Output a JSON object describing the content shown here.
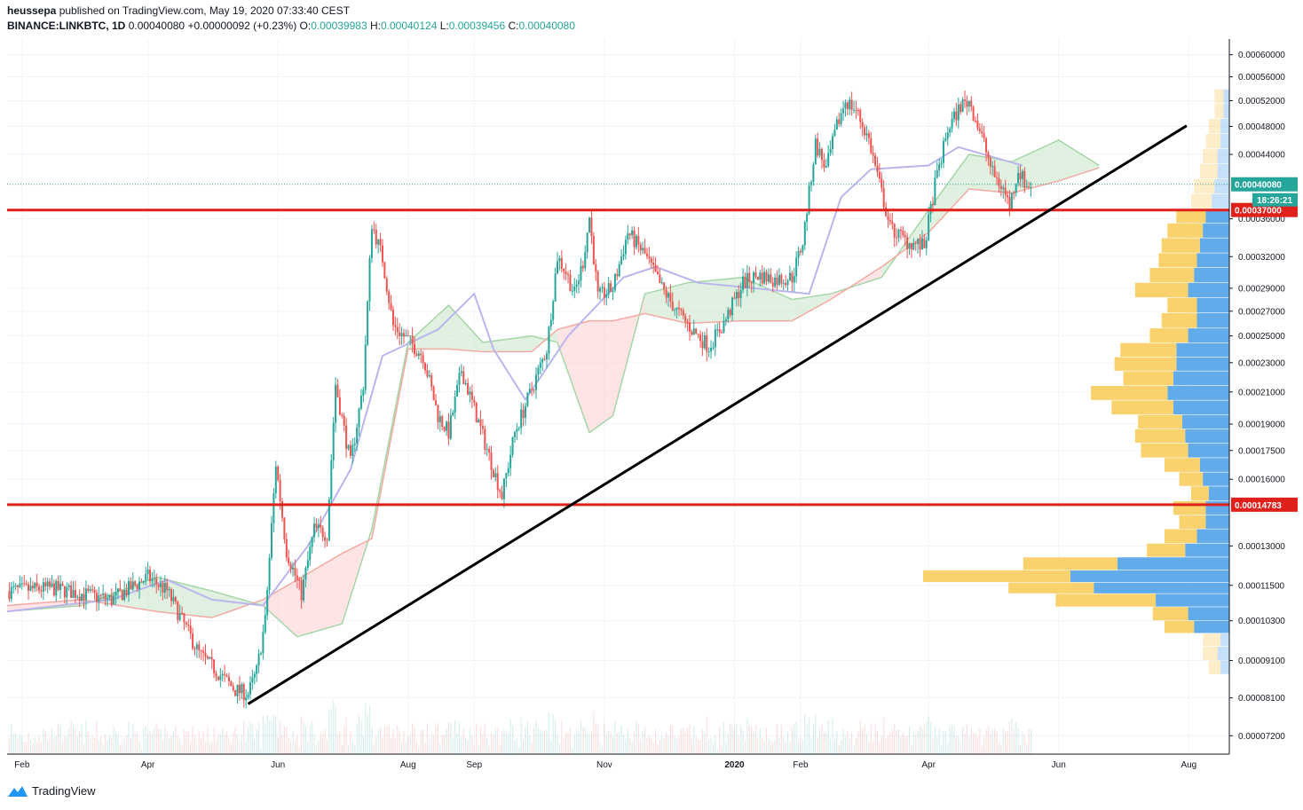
{
  "header": {
    "author": "heussepa",
    "published_text": "published on TradingView.com, May 19, 2020 07:33:40 CEST",
    "symbol": "BINANCE:LINKBTC, 1D",
    "last": "0.00040080",
    "change": "+0.00000092 (+0.23%)",
    "o_label": "O:",
    "o_value": "0.00039983",
    "h_label": "H:",
    "h_value": "0.00040124",
    "l_label": "L:",
    "l_value": "0.00039456",
    "c_label": "C:",
    "c_value": "0.00040080"
  },
  "footer": {
    "brand": "TradingView"
  },
  "colors": {
    "up": "#26a69a",
    "down": "#ef5350",
    "level_line": "#e0201b",
    "trendline": "#000000",
    "cloud_bull": "#c8e6c9",
    "cloud_bear": "#ffcdd2",
    "vp_buy": "#5aa7ea",
    "vp_sell": "#f9cf65",
    "tenkan": "#b9b6ee",
    "kijun": "#f4a9a2"
  },
  "chart_data": {
    "type": "candlestick",
    "symbol": "BINANCE:LINKBTC",
    "interval": "1D",
    "y_scale": "log",
    "ylim": [
      6.8e-05,
      0.00063
    ],
    "x_range": [
      "2019-01-25",
      "2020-08-20"
    ],
    "y_ticks": [
      "0.00060000",
      "0.00056000",
      "0.00052000",
      "0.00048000",
      "0.00044000",
      "0.00036000",
      "0.00032000",
      "0.00029000",
      "0.00027000",
      "0.00025000",
      "0.00023000",
      "0.00021000",
      "0.00019000",
      "0.00017500",
      "0.00016000",
      "0.00013000",
      "0.00011500",
      "0.00010300",
      "0.00009100",
      "0.00008100",
      "0.00007200"
    ],
    "x_ticks": [
      {
        "label": "Feb",
        "date": "2019-02-01"
      },
      {
        "label": "Apr",
        "date": "2019-04-01"
      },
      {
        "label": "Jun",
        "date": "2019-06-01"
      },
      {
        "label": "Aug",
        "date": "2019-08-01"
      },
      {
        "label": "Sep",
        "date": "2019-09-01"
      },
      {
        "label": "Nov",
        "date": "2019-11-01"
      },
      {
        "label": "2020",
        "date": "2020-01-01"
      },
      {
        "label": "Feb",
        "date": "2020-02-01"
      },
      {
        "label": "Apr",
        "date": "2020-04-01"
      },
      {
        "label": "Jun",
        "date": "2020-06-01"
      },
      {
        "label": "Aug",
        "date": "2020-08-01"
      }
    ],
    "price_path": [
      [
        "2019-01-25",
        0.000113
      ],
      [
        "2019-02-15",
        0.000114
      ],
      [
        "2019-03-01",
        0.000112
      ],
      [
        "2019-03-15",
        0.00011
      ],
      [
        "2019-04-01",
        0.000118
      ],
      [
        "2019-04-10",
        0.000113
      ],
      [
        "2019-04-25",
        9.3e-05
      ],
      [
        "2019-05-12",
        8.3e-05
      ],
      [
        "2019-05-18",
        8.2e-05
      ],
      [
        "2019-05-22",
        8.8e-05
      ],
      [
        "2019-05-26",
        0.000103
      ],
      [
        "2019-05-31",
        0.000168
      ],
      [
        "2019-06-05",
        0.000128
      ],
      [
        "2019-06-12",
        0.000112
      ],
      [
        "2019-06-18",
        0.000137
      ],
      [
        "2019-06-24",
        0.000135
      ],
      [
        "2019-06-28",
        0.000215
      ],
      [
        "2019-07-05",
        0.000168
      ],
      [
        "2019-07-11",
        0.000215
      ],
      [
        "2019-07-15",
        0.000355
      ],
      [
        "2019-07-20",
        0.000318
      ],
      [
        "2019-07-25",
        0.000258
      ],
      [
        "2019-08-02",
        0.000245
      ],
      [
        "2019-08-08",
        0.000235
      ],
      [
        "2019-08-15",
        0.000195
      ],
      [
        "2019-08-20",
        0.000185
      ],
      [
        "2019-08-26",
        0.000225
      ],
      [
        "2019-09-02",
        0.000195
      ],
      [
        "2019-09-08",
        0.000172
      ],
      [
        "2019-09-14",
        0.000152
      ],
      [
        "2019-09-20",
        0.000185
      ],
      [
        "2019-09-28",
        0.000212
      ],
      [
        "2019-10-05",
        0.00024
      ],
      [
        "2019-10-10",
        0.00032
      ],
      [
        "2019-10-14",
        0.000305
      ],
      [
        "2019-10-18",
        0.000285
      ],
      [
        "2019-10-22",
        0.000315
      ],
      [
        "2019-10-25",
        0.000362
      ],
      [
        "2019-10-29",
        0.000282
      ],
      [
        "2019-11-05",
        0.00029
      ],
      [
        "2019-11-12",
        0.000345
      ],
      [
        "2019-11-20",
        0.000322
      ],
      [
        "2019-11-28",
        0.00029
      ],
      [
        "2019-12-05",
        0.00027
      ],
      [
        "2019-12-12",
        0.000255
      ],
      [
        "2019-12-20",
        0.000242
      ],
      [
        "2019-12-27",
        0.00026
      ],
      [
        "2020-01-05",
        0.000295
      ],
      [
        "2020-01-12",
        0.000302
      ],
      [
        "2020-01-20",
        0.000298
      ],
      [
        "2020-01-28",
        0.0003
      ],
      [
        "2020-02-02",
        0.000335
      ],
      [
        "2020-02-08",
        0.000455
      ],
      [
        "2020-02-13",
        0.00042
      ],
      [
        "2020-02-18",
        0.00048
      ],
      [
        "2020-02-22",
        0.00052
      ],
      [
        "2020-02-27",
        0.000505
      ],
      [
        "2020-03-04",
        0.00046
      ],
      [
        "2020-03-10",
        0.00039
      ],
      [
        "2020-03-14",
        0.00035
      ],
      [
        "2020-03-22",
        0.000335
      ],
      [
        "2020-03-30",
        0.00033
      ],
      [
        "2020-04-04",
        0.0004
      ],
      [
        "2020-04-10",
        0.000475
      ],
      [
        "2020-04-16",
        0.000512
      ],
      [
        "2020-04-20",
        0.00052
      ],
      [
        "2020-04-26",
        0.000465
      ],
      [
        "2020-05-01",
        0.000415
      ],
      [
        "2020-05-06",
        0.000395
      ],
      [
        "2020-05-09",
        0.000375
      ],
      [
        "2020-05-13",
        0.00042
      ],
      [
        "2020-05-17",
        0.000398
      ],
      [
        "2020-05-19",
        0.000401
      ]
    ],
    "cloud": [
      [
        "2019-01-25",
        0.000106,
        0.000108
      ],
      [
        "2019-03-01",
        0.000108,
        0.00011
      ],
      [
        "2019-04-05",
        0.000118,
        0.000106
      ],
      [
        "2019-05-01",
        0.000113,
        0.000104
      ],
      [
        "2019-05-25",
        0.000108,
        0.00011
      ],
      [
        "2019-06-10",
        9.8e-05,
        0.000117
      ],
      [
        "2019-07-01",
        0.000102,
        0.000127
      ],
      [
        "2019-07-15",
        0.000137,
        0.000133
      ],
      [
        "2019-08-01",
        0.000245,
        0.00024
      ],
      [
        "2019-08-20",
        0.000275,
        0.00024
      ],
      [
        "2019-09-05",
        0.000245,
        0.000238
      ],
      [
        "2019-09-28",
        0.00025,
        0.000238
      ],
      [
        "2019-10-10",
        0.000245,
        0.000255
      ],
      [
        "2019-10-25",
        0.000185,
        0.000262
      ],
      [
        "2019-11-05",
        0.000195,
        0.000262
      ],
      [
        "2019-11-20",
        0.000285,
        0.000268
      ],
      [
        "2019-12-10",
        0.000295,
        0.00026
      ],
      [
        "2020-01-05",
        0.0003,
        0.000262
      ],
      [
        "2020-01-28",
        0.00028,
        0.000262
      ],
      [
        "2020-02-15",
        0.000285,
        0.00028
      ],
      [
        "2020-03-10",
        0.0003,
        0.00031
      ],
      [
        "2020-04-01",
        0.00037,
        0.000345
      ],
      [
        "2020-04-20",
        0.00044,
        0.000395
      ],
      [
        "2020-05-10",
        0.00043,
        0.00039
      ],
      [
        "2020-06-01",
        0.00046,
        0.000405
      ],
      [
        "2020-06-20",
        0.000425,
        0.000422
      ]
    ],
    "tenkan_kijun": [
      [
        "2019-01-25",
        0.000106
      ],
      [
        "2019-03-15",
        0.00011
      ],
      [
        "2019-04-10",
        0.000117
      ],
      [
        "2019-05-01",
        0.00011
      ],
      [
        "2019-05-25",
        0.000108
      ],
      [
        "2019-06-15",
        0.00013
      ],
      [
        "2019-07-05",
        0.000165
      ],
      [
        "2019-07-20",
        0.000235
      ],
      [
        "2019-08-15",
        0.000255
      ],
      [
        "2019-09-01",
        0.000285
      ],
      [
        "2019-09-10",
        0.00024
      ],
      [
        "2019-09-25",
        0.000205
      ],
      [
        "2019-10-15",
        0.00025
      ],
      [
        "2019-11-10",
        0.0003
      ],
      [
        "2019-11-25",
        0.00031
      ],
      [
        "2019-12-15",
        0.000295
      ],
      [
        "2020-01-10",
        0.00029
      ],
      [
        "2020-02-05",
        0.000285
      ],
      [
        "2020-02-20",
        0.000385
      ],
      [
        "2020-03-05",
        0.00042
      ],
      [
        "2020-04-01",
        0.000425
      ],
      [
        "2020-04-15",
        0.00045
      ],
      [
        "2020-05-15",
        0.000425
      ]
    ],
    "levels": [
      {
        "price": 0.00037,
        "label": "0.00037000",
        "color": "#e0201b"
      },
      {
        "price": 0.00014783,
        "label": "0.00014783",
        "color": "#e0201b"
      }
    ],
    "last_price": {
      "price": 0.0004008,
      "label": "0.00040080",
      "countdown": "18:26:21"
    },
    "trendline": {
      "from": [
        "2019-05-18",
        7.95e-05
      ],
      "to": [
        "2020-07-31",
        0.000481
      ]
    },
    "volume_profile": [
      {
        "price": 8.9e-05,
        "buy": 3,
        "sell": 4
      },
      {
        "price": 9.3e-05,
        "buy": 4,
        "sell": 5
      },
      {
        "price": 9.7e-05,
        "buy": 3,
        "sell": 6
      },
      {
        "price": 0.000101,
        "buy": 12,
        "sell": 10
      },
      {
        "price": 0.000105,
        "buy": 14,
        "sell": 12
      },
      {
        "price": 0.00011,
        "buy": 25,
        "sell": 34
      },
      {
        "price": 0.000114,
        "buy": 46,
        "sell": 29
      },
      {
        "price": 0.000118,
        "buy": 54,
        "sell": 50
      },
      {
        "price": 0.000123,
        "buy": 38,
        "sell": 32
      },
      {
        "price": 0.000128,
        "buy": 15,
        "sell": 13
      },
      {
        "price": 0.000134,
        "buy": 11,
        "sell": 11
      },
      {
        "price": 0.00014,
        "buy": 8,
        "sell": 9
      },
      {
        "price": 0.000146,
        "buy": 8,
        "sell": 11
      },
      {
        "price": 0.000153,
        "buy": 7,
        "sell": 6
      },
      {
        "price": 0.00016,
        "buy": 9,
        "sell": 8
      },
      {
        "price": 0.000167,
        "buy": 10,
        "sell": 12
      },
      {
        "price": 0.000175,
        "buy": 14,
        "sell": 16
      },
      {
        "price": 0.000183,
        "buy": 15,
        "sell": 17
      },
      {
        "price": 0.000191,
        "buy": 16,
        "sell": 15
      },
      {
        "price": 0.0002,
        "buy": 19,
        "sell": 21
      },
      {
        "price": 0.000209,
        "buy": 21,
        "sell": 26
      },
      {
        "price": 0.000219,
        "buy": 19,
        "sell": 17
      },
      {
        "price": 0.000229,
        "buy": 18,
        "sell": 21
      },
      {
        "price": 0.000239,
        "buy": 18,
        "sell": 19
      },
      {
        "price": 0.00025,
        "buy": 14,
        "sell": 13
      },
      {
        "price": 0.000262,
        "buy": 11,
        "sell": 12
      },
      {
        "price": 0.000275,
        "buy": 11,
        "sell": 10
      },
      {
        "price": 0.000288,
        "buy": 14,
        "sell": 18
      },
      {
        "price": 0.000302,
        "buy": 12,
        "sell": 15
      },
      {
        "price": 0.000316,
        "buy": 11,
        "sell": 13
      },
      {
        "price": 0.000331,
        "buy": 10,
        "sell": 13
      },
      {
        "price": 0.000347,
        "buy": 9,
        "sell": 12
      },
      {
        "price": 0.000363,
        "buy": 8,
        "sell": 10
      },
      {
        "price": 0.00038,
        "buy": 6,
        "sell": 7
      },
      {
        "price": 0.000398,
        "buy": 5,
        "sell": 7
      },
      {
        "price": 0.000417,
        "buy": 4,
        "sell": 6
      },
      {
        "price": 0.000437,
        "buy": 4,
        "sell": 5
      },
      {
        "price": 0.000458,
        "buy": 3,
        "sell": 5
      },
      {
        "price": 0.00048,
        "buy": 3,
        "sell": 4
      },
      {
        "price": 0.000503,
        "buy": 2,
        "sell": 3
      },
      {
        "price": 0.000527,
        "buy": 2,
        "sell": 3
      }
    ]
  }
}
